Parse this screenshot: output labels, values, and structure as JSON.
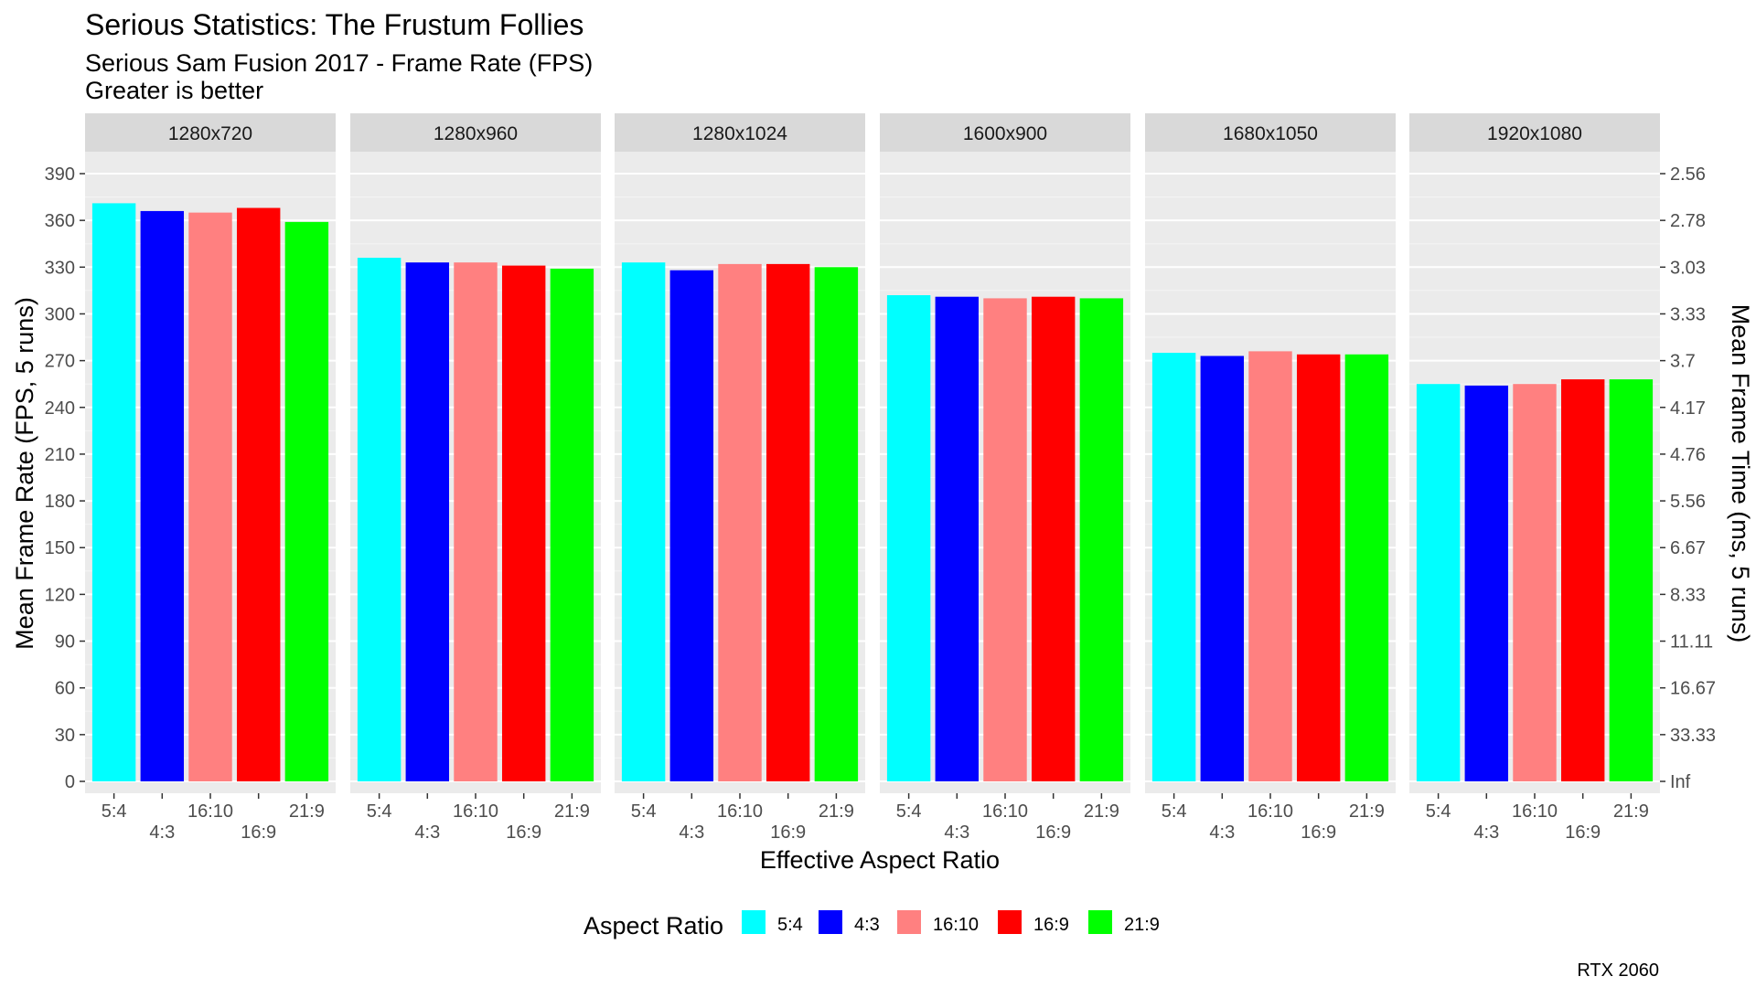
{
  "chart_data": {
    "type": "bar",
    "title": "Serious Statistics: The Frustum Follies",
    "subtitle_lines": [
      "Serious Sam Fusion 2017 - Frame Rate (FPS)",
      "Greater is better"
    ],
    "caption": "RTX 2060",
    "xlabel": "Effective Aspect Ratio",
    "ylabel": "Mean Frame Rate (FPS, 5 runs)",
    "y2label": "Mean Frame Time (ms, 5 runs)",
    "ylim": [
      0,
      400
    ],
    "yticks": [
      0,
      30,
      60,
      90,
      120,
      150,
      180,
      210,
      240,
      270,
      300,
      330,
      360,
      390
    ],
    "y2ticks": [
      "Inf",
      "33.33",
      "16.67",
      "11.11",
      "8.33",
      "6.67",
      "5.56",
      "4.76",
      "4.17",
      "3.7",
      "3.33",
      "3.03",
      "2.78",
      "2.56"
    ],
    "categories": [
      "5:4",
      "4:3",
      "16:10",
      "16:9",
      "21:9"
    ],
    "legend": {
      "title": "Aspect Ratio",
      "position": "bottom",
      "entries": [
        "5:4",
        "4:3",
        "16:10",
        "16:9",
        "21:9"
      ]
    },
    "colors": {
      "5:4": "#00FFFF",
      "4:3": "#0000FF",
      "16:10": "#FF8080",
      "16:9": "#FF0000",
      "21:9": "#00FF00"
    },
    "grid": true,
    "facets": [
      {
        "label": "1280x720",
        "values": [
          371,
          366,
          365,
          368,
          359
        ]
      },
      {
        "label": "1280x960",
        "values": [
          336,
          333,
          333,
          331,
          329
        ]
      },
      {
        "label": "1280x1024",
        "values": [
          333,
          328,
          332,
          332,
          330
        ]
      },
      {
        "label": "1600x900",
        "values": [
          312,
          311,
          310,
          311,
          310
        ]
      },
      {
        "label": "1680x1050",
        "values": [
          275,
          273,
          276,
          274,
          274
        ]
      },
      {
        "label": "1920x1080",
        "values": [
          255,
          254,
          255,
          258,
          258
        ]
      }
    ]
  }
}
